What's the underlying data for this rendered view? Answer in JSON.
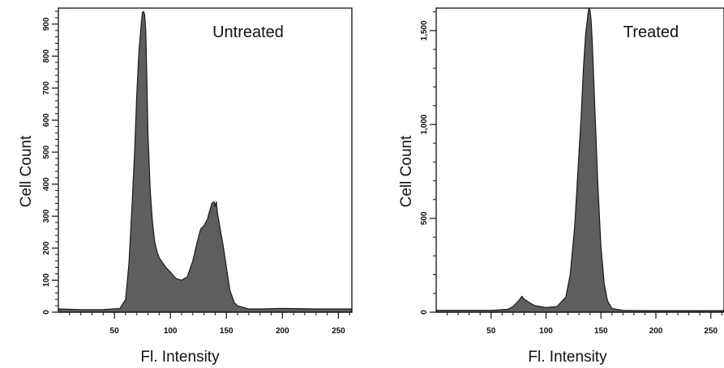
{
  "chart_data": [
    {
      "type": "area",
      "title": "Untreated",
      "xlabel": "Fl. Intensity",
      "ylabel": "Cell Count",
      "xlim": [
        0,
        262
      ],
      "ylim": [
        0,
        950
      ],
      "xticks": [
        50,
        100,
        150,
        200,
        250
      ],
      "yticks": [
        0,
        100,
        200,
        300,
        400,
        500,
        600,
        700,
        800,
        900
      ],
      "grid": false,
      "color": "#5e5e5e",
      "series": [
        {
          "x": [
            0,
            20,
            40,
            55,
            60,
            63,
            66,
            68,
            70,
            72,
            74,
            75,
            76,
            77,
            78,
            79,
            80,
            82,
            84,
            86,
            88,
            90,
            93,
            96,
            100,
            105,
            110,
            115,
            120,
            124,
            127,
            130,
            133,
            135,
            137,
            139,
            140,
            141,
            142,
            143,
            145,
            147,
            150,
            153,
            157,
            160,
            165,
            170,
            180,
            200,
            230,
            262
          ],
          "y": [
            10,
            8,
            8,
            12,
            40,
            150,
            350,
            500,
            680,
            820,
            900,
            935,
            940,
            930,
            880,
            720,
            560,
            380,
            280,
            220,
            190,
            170,
            155,
            140,
            125,
            105,
            100,
            110,
            160,
            220,
            260,
            270,
            290,
            315,
            340,
            345,
            330,
            345,
            310,
            290,
            250,
            210,
            140,
            70,
            30,
            20,
            15,
            10,
            10,
            12,
            10,
            10
          ]
        }
      ]
    },
    {
      "type": "area",
      "title": "Treated",
      "xlabel": "Fl. Intensity",
      "ylabel": "Cell Count",
      "xlim": [
        0,
        262
      ],
      "ylim": [
        0,
        1620
      ],
      "xticks": [
        50,
        100,
        150,
        200,
        250
      ],
      "yticks": [
        0,
        500,
        1000,
        1500
      ],
      "grid": false,
      "color": "#5e5e5e",
      "series": [
        {
          "x": [
            0,
            50,
            65,
            70,
            75,
            78,
            80,
            85,
            90,
            100,
            110,
            118,
            122,
            126,
            129,
            132,
            134,
            136,
            138,
            139,
            140,
            141,
            142,
            143,
            145,
            147,
            150,
            153,
            156,
            160,
            170,
            190,
            230,
            262
          ],
          "y": [
            10,
            10,
            15,
            30,
            60,
            85,
            70,
            50,
            35,
            25,
            30,
            80,
            200,
            450,
            750,
            1050,
            1300,
            1480,
            1580,
            1620,
            1610,
            1560,
            1450,
            1300,
            1000,
            700,
            350,
            150,
            60,
            20,
            10,
            8,
            8,
            8
          ]
        }
      ]
    }
  ]
}
